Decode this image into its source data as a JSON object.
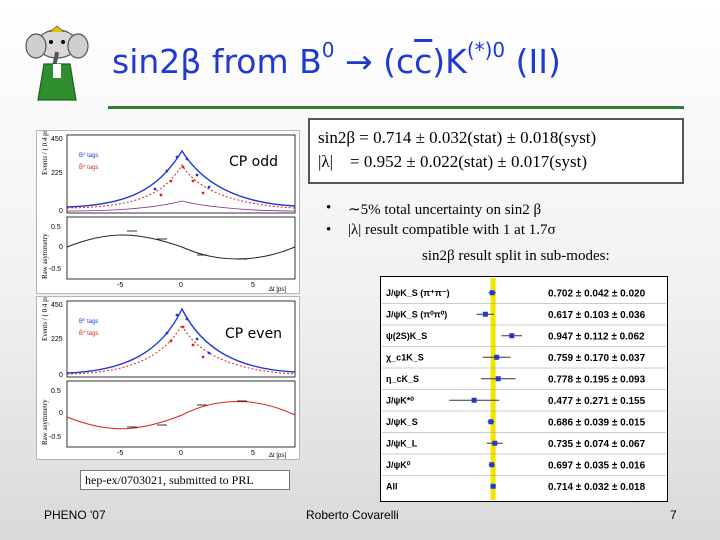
{
  "slide": {
    "title_main": "sin2β from B",
    "title_sup1": "0",
    "title_arrow": " → (c",
    "title_cbar": "c",
    "title_k": ")K",
    "title_sup2": "(*)0",
    "title_end": " (II)",
    "logo_icon": "elephant-mascot-icon",
    "cp_odd_label": "CP odd",
    "cp_even_label": "CP even",
    "result_line1": "sin2β = 0.714 ± 0.032(stat) ± 0.018(syst)",
    "result_line2": "|λ|    = 0.952 ± 0.022(stat) ± 0.017(syst)",
    "bullets": [
      "∼5% total uncertainty on sin2 β",
      "|λ| result compatible with 1 at 1.7σ"
    ],
    "split_text": "sin2β result split in sub-modes:",
    "reference": "hep-ex/0703021, submitted to PRL",
    "footer_left": "PHENO '07",
    "footer_center": "Roberto Covarelli",
    "footer_right": "7"
  },
  "plots": {
    "top_y_label": "Events / ( 0.4 ps )",
    "top_ticks_y": [
      "450",
      "225",
      "0"
    ],
    "top_legend": [
      "B⁰ tags",
      "B̄⁰ tags"
    ],
    "asym_label": "Raw asymmetry",
    "asym_ticks": [
      "0.5",
      "0",
      "-0.5"
    ],
    "x_ticks": [
      "-5",
      "0",
      "5"
    ],
    "x_label": "Δt [ps]",
    "bottom_ticks_y": [
      "450",
      "225",
      "0"
    ],
    "bottom_legend": [
      "B⁰ tags",
      "B̄⁰ tags"
    ],
    "bottom_asym_ticks": [
      "0.5",
      "0",
      "-0.5"
    ]
  },
  "chart_data": {
    "type": "scatter",
    "title": "",
    "band_center": 0.714,
    "band_color": "#f2e600",
    "modes": [
      {
        "label": "J/ψK_S (π⁺π⁻)",
        "value": 0.702,
        "stat": 0.042,
        "syst": 0.02,
        "text": "0.702 ± 0.042 ± 0.020"
      },
      {
        "label": "J/ψK_S (π⁰π⁰)",
        "value": 0.617,
        "stat": 0.103,
        "syst": 0.036,
        "text": "0.617 ± 0.103 ± 0.036"
      },
      {
        "label": "ψ(2S)K_S",
        "value": 0.947,
        "stat": 0.112,
        "syst": 0.062,
        "text": "0.947 ± 0.112 ± 0.062"
      },
      {
        "label": "χ_c1K_S",
        "value": 0.759,
        "stat": 0.17,
        "syst": 0.037,
        "text": "0.759 ± 0.170 ± 0.037"
      },
      {
        "label": "η_cK_S",
        "value": 0.778,
        "stat": 0.195,
        "syst": 0.093,
        "text": "0.778 ± 0.195 ± 0.093"
      },
      {
        "label": "J/ψK*⁰",
        "value": 0.477,
        "stat": 0.271,
        "syst": 0.155,
        "text": "0.477 ± 0.271 ± 0.155"
      },
      {
        "label": "J/ψK_S",
        "value": 0.686,
        "stat": 0.039,
        "syst": 0.015,
        "text": "0.686 ± 0.039 ± 0.015"
      },
      {
        "label": "J/ψK_L",
        "value": 0.735,
        "stat": 0.074,
        "syst": 0.067,
        "text": "0.735 ± 0.074 ± 0.067"
      },
      {
        "label": "J/ψK⁰",
        "value": 0.697,
        "stat": 0.035,
        "syst": 0.016,
        "text": "0.697 ± 0.035 ± 0.016"
      },
      {
        "label": "All",
        "value": 0.714,
        "stat": 0.032,
        "syst": 0.018,
        "text": "0.714 ± 0.032 ± 0.018"
      }
    ],
    "xlim": [
      0.0,
      1.3
    ]
  }
}
